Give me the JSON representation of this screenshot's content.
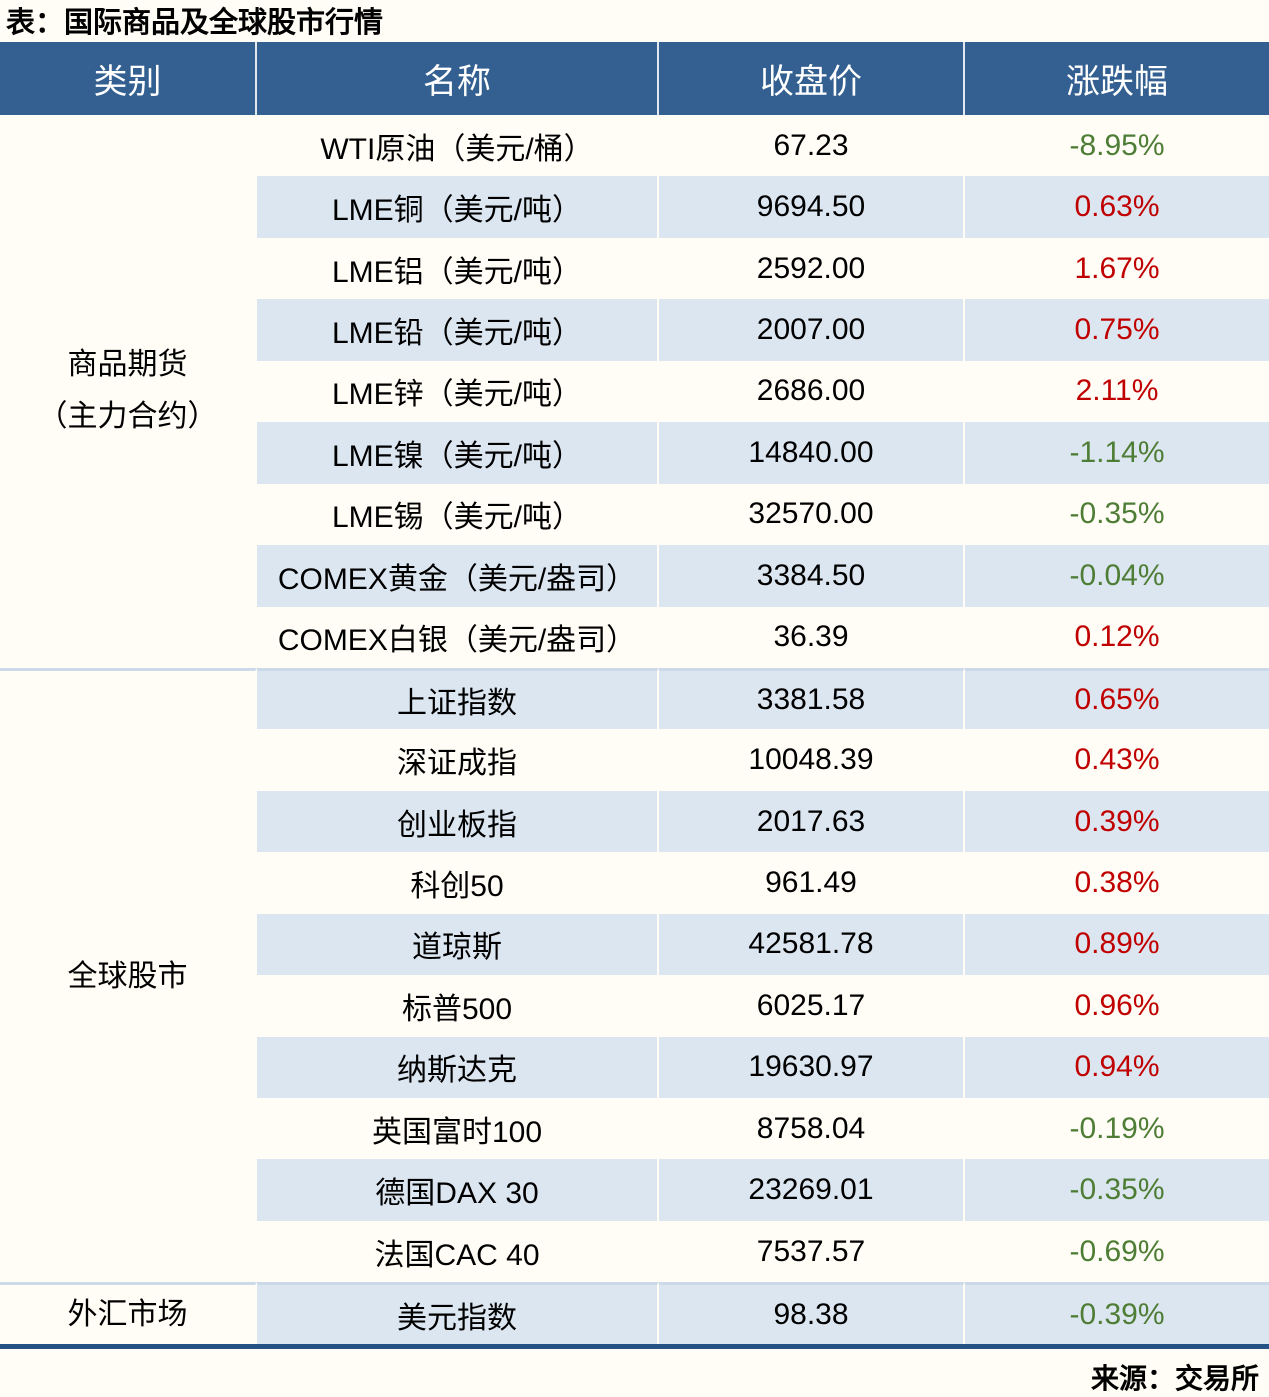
{
  "page": {
    "title": "表：国际商品及全球股市行情",
    "source": "来源：交易所"
  },
  "colors": {
    "header_bg": "#336090",
    "header_text": "#ffffff",
    "row_alt_bg": "#dce6f1",
    "positive_red": "#c00000",
    "negative_green": "#4e7d35",
    "bottom_rule": "#255285",
    "section_divider": "#ccd9e8"
  },
  "table": {
    "headers": [
      "类别",
      "名称",
      "收盘价",
      "涨跌幅"
    ],
    "sections": [
      {
        "category_lines": [
          "商品期货",
          "（主力合约）"
        ],
        "rows": [
          {
            "name": "WTI原油（美元/桶）",
            "close": "67.23",
            "change": "-8.95%",
            "dir": "down"
          },
          {
            "name": "LME铜（美元/吨）",
            "close": "9694.50",
            "change": "0.63%",
            "dir": "up"
          },
          {
            "name": "LME铝（美元/吨）",
            "close": "2592.00",
            "change": "1.67%",
            "dir": "up"
          },
          {
            "name": "LME铅（美元/吨）",
            "close": "2007.00",
            "change": "0.75%",
            "dir": "up"
          },
          {
            "name": "LME锌（美元/吨）",
            "close": "2686.00",
            "change": "2.11%",
            "dir": "up"
          },
          {
            "name": "LME镍（美元/吨）",
            "close": "14840.00",
            "change": "-1.14%",
            "dir": "down"
          },
          {
            "name": "LME锡（美元/吨）",
            "close": "32570.00",
            "change": "-0.35%",
            "dir": "down"
          },
          {
            "name": "COMEX黄金（美元/盎司）",
            "close": "3384.50",
            "change": "-0.04%",
            "dir": "down"
          },
          {
            "name": "COMEX白银（美元/盎司）",
            "close": "36.39",
            "change": "0.12%",
            "dir": "up"
          }
        ]
      },
      {
        "category_lines": [
          "全球股市"
        ],
        "rows": [
          {
            "name": "上证指数",
            "close": "3381.58",
            "change": "0.65%",
            "dir": "up"
          },
          {
            "name": "深证成指",
            "close": "10048.39",
            "change": "0.43%",
            "dir": "up"
          },
          {
            "name": "创业板指",
            "close": "2017.63",
            "change": "0.39%",
            "dir": "up"
          },
          {
            "name": "科创50",
            "close": "961.49",
            "change": "0.38%",
            "dir": "up"
          },
          {
            "name": "道琼斯",
            "close": "42581.78",
            "change": "0.89%",
            "dir": "up"
          },
          {
            "name": "标普500",
            "close": "6025.17",
            "change": "0.96%",
            "dir": "up"
          },
          {
            "name": "纳斯达克",
            "close": "19630.97",
            "change": "0.94%",
            "dir": "up"
          },
          {
            "name": "英国富时100",
            "close": "8758.04",
            "change": "-0.19%",
            "dir": "down"
          },
          {
            "name": "德国DAX 30",
            "close": "23269.01",
            "change": "-0.35%",
            "dir": "down"
          },
          {
            "name": "法国CAC 40",
            "close": "7537.57",
            "change": "-0.69%",
            "dir": "down"
          }
        ]
      },
      {
        "category_lines": [
          "外汇市场"
        ],
        "rows": [
          {
            "name": "美元指数",
            "close": "98.38",
            "change": "-0.39%",
            "dir": "down"
          }
        ]
      }
    ]
  },
  "chart_data": {
    "type": "table",
    "title": "表：国际商品及全球股市行情",
    "columns": [
      "类别",
      "名称",
      "收盘价",
      "涨跌幅"
    ],
    "rows": [
      [
        "商品期货（主力合约）",
        "WTI原油（美元/桶）",
        67.23,
        "-8.95%"
      ],
      [
        "商品期货（主力合约）",
        "LME铜（美元/吨）",
        9694.5,
        "0.63%"
      ],
      [
        "商品期货（主力合约）",
        "LME铝（美元/吨）",
        2592.0,
        "1.67%"
      ],
      [
        "商品期货（主力合约）",
        "LME铅（美元/吨）",
        2007.0,
        "0.75%"
      ],
      [
        "商品期货（主力合约）",
        "LME锌（美元/吨）",
        2686.0,
        "2.11%"
      ],
      [
        "商品期货（主力合约）",
        "LME镍（美元/吨）",
        14840.0,
        "-1.14%"
      ],
      [
        "商品期货（主力合约）",
        "LME锡（美元/吨）",
        32570.0,
        "-0.35%"
      ],
      [
        "商品期货（主力合约）",
        "COMEX黄金（美元/盎司）",
        3384.5,
        "-0.04%"
      ],
      [
        "商品期货（主力合约）",
        "COMEX白银（美元/盎司）",
        36.39,
        "0.12%"
      ],
      [
        "全球股市",
        "上证指数",
        3381.58,
        "0.65%"
      ],
      [
        "全球股市",
        "深证成指",
        10048.39,
        "0.43%"
      ],
      [
        "全球股市",
        "创业板指",
        2017.63,
        "0.39%"
      ],
      [
        "全球股市",
        "科创50",
        961.49,
        "0.38%"
      ],
      [
        "全球股市",
        "道琼斯",
        42581.78,
        "0.89%"
      ],
      [
        "全球股市",
        "标普500",
        6025.17,
        "0.96%"
      ],
      [
        "全球股市",
        "纳斯达克",
        19630.97,
        "0.94%"
      ],
      [
        "全球股市",
        "英国富时100",
        8758.04,
        "-0.19%"
      ],
      [
        "全球股市",
        "德国DAX 30",
        23269.01,
        "-0.35%"
      ],
      [
        "全球股市",
        "法国CAC 40",
        7537.57,
        "-0.69%"
      ],
      [
        "外汇市场",
        "美元指数",
        98.38,
        "-0.39%"
      ]
    ],
    "source": "来源：交易所",
    "legend": "red text = rise (涨), green text = fall (跌)"
  }
}
